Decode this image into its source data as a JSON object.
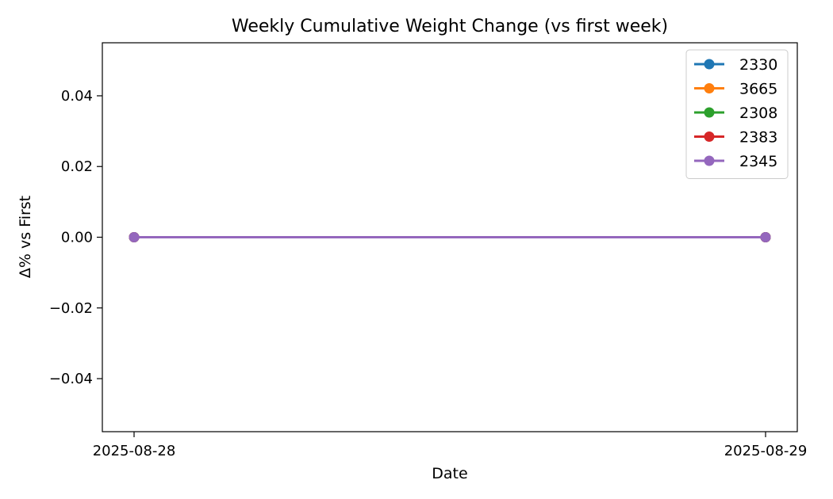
{
  "chart_data": {
    "type": "line",
    "title": "Weekly Cumulative Weight Change (vs first week)",
    "xlabel": "Date",
    "ylabel": "Δ% vs First",
    "x": [
      "2025-08-28",
      "2025-08-29"
    ],
    "ylim": [
      -0.055,
      0.055
    ],
    "yticks": [
      0.04,
      0.02,
      0.0,
      -0.02,
      -0.04
    ],
    "ytick_labels": [
      "0.04",
      "0.02",
      "0.00",
      "−0.02",
      "−0.04"
    ],
    "grid": false,
    "legend_position": "top-right",
    "series": [
      {
        "name": "2330",
        "color": "#1f77b4",
        "values": [
          0.0,
          0.0
        ]
      },
      {
        "name": "3665",
        "color": "#ff7f0e",
        "values": [
          0.0,
          0.0
        ]
      },
      {
        "name": "2308",
        "color": "#2ca02c",
        "values": [
          0.0,
          0.0
        ]
      },
      {
        "name": "2383",
        "color": "#d62728",
        "values": [
          0.0,
          0.0
        ]
      },
      {
        "name": "2345",
        "color": "#9467bd",
        "values": [
          0.0,
          0.0
        ]
      }
    ]
  }
}
